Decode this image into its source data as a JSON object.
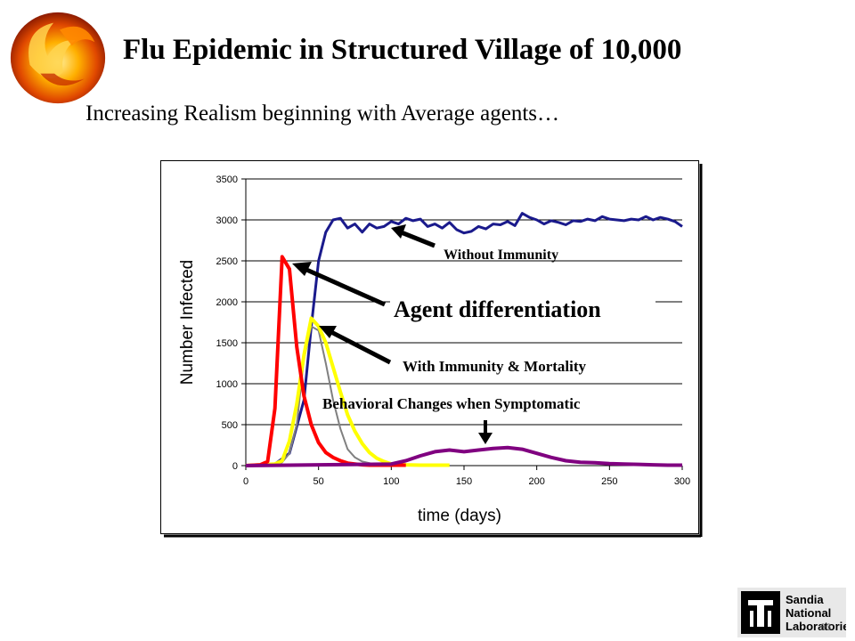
{
  "slide": {
    "title": "Flu Epidemic in Structured Village of 10,000",
    "subtitle": "Increasing Realism beginning with Average agents…",
    "page_number": "33",
    "logo_text": [
      "Sandia",
      "National",
      "Laboratories"
    ]
  },
  "chart_data": {
    "type": "line",
    "xlabel": "time (days)",
    "ylabel": "Number Infected",
    "xlim": [
      0,
      300
    ],
    "ylim": [
      0,
      3500
    ],
    "xticks": [
      0,
      50,
      100,
      150,
      200,
      250,
      300
    ],
    "yticks": [
      0,
      500,
      1000,
      1500,
      2000,
      2500,
      3000,
      3500
    ],
    "grid": "horizontal",
    "series": [
      {
        "color": "#1a1a8c",
        "x": [
          0,
          20,
          30,
          40,
          45,
          50,
          55,
          60,
          65,
          70,
          75,
          80,
          85,
          90,
          95,
          100,
          105,
          110,
          115,
          120,
          125,
          130,
          135,
          140,
          145,
          150,
          155,
          160,
          165,
          170,
          175,
          180,
          185,
          190,
          195,
          200,
          205,
          210,
          215,
          220,
          225,
          230,
          235,
          240,
          245,
          250,
          255,
          260,
          265,
          270,
          275,
          280,
          285,
          290,
          295,
          300
        ],
        "values": [
          0,
          20,
          150,
          800,
          1700,
          2500,
          2850,
          3000,
          3020,
          2900,
          2950,
          2850,
          2950,
          2900,
          2920,
          2980,
          2950,
          3020,
          2990,
          3010,
          2920,
          2950,
          2900,
          2970,
          2880,
          2840,
          2860,
          2920,
          2890,
          2950,
          2940,
          2980,
          2930,
          3080,
          3030,
          3000,
          2950,
          2990,
          2970,
          2940,
          2990,
          2980,
          3010,
          2990,
          3040,
          3010,
          3000,
          2990,
          3010,
          3000,
          3040,
          3000,
          3030,
          3010,
          2980,
          2920
        ]
      },
      {
        "color": "#808080",
        "x": [
          0,
          20,
          25,
          30,
          35,
          40,
          45,
          50,
          55,
          60,
          65,
          70,
          75,
          80,
          90,
          100,
          110
        ],
        "values": [
          0,
          10,
          40,
          150,
          500,
          1300,
          1700,
          1650,
          1250,
          800,
          450,
          200,
          100,
          50,
          10,
          0,
          0
        ]
      },
      {
        "color": "#ffff00",
        "x": [
          0,
          20,
          25,
          30,
          35,
          40,
          45,
          50,
          55,
          60,
          65,
          70,
          75,
          80,
          85,
          90,
          95,
          100,
          110,
          120,
          130,
          140
        ],
        "values": [
          0,
          20,
          60,
          300,
          750,
          1350,
          1800,
          1700,
          1500,
          1200,
          900,
          620,
          420,
          270,
          160,
          90,
          50,
          20,
          10,
          5,
          5,
          5
        ]
      },
      {
        "color": "#ff0000",
        "x": [
          0,
          10,
          15,
          20,
          25,
          30,
          35,
          40,
          45,
          50,
          55,
          60,
          65,
          70,
          75,
          80,
          85,
          90,
          100,
          110
        ],
        "values": [
          0,
          10,
          50,
          700,
          2550,
          2400,
          1450,
          850,
          500,
          280,
          160,
          100,
          60,
          30,
          20,
          10,
          5,
          5,
          5,
          5
        ]
      },
      {
        "color": "#800080",
        "x": [
          0,
          30,
          50,
          80,
          100,
          110,
          120,
          130,
          140,
          150,
          160,
          170,
          180,
          190,
          200,
          210,
          220,
          230,
          240,
          250,
          260,
          270,
          280,
          290,
          300
        ],
        "values": [
          0,
          5,
          10,
          15,
          20,
          60,
          120,
          170,
          190,
          170,
          190,
          210,
          220,
          200,
          150,
          100,
          60,
          40,
          35,
          25,
          20,
          15,
          10,
          5,
          5
        ]
      }
    ],
    "annotations": [
      {
        "text": "Without  Immunity",
        "x": 95,
        "y": 2950
      },
      {
        "text": "Agent differentiation",
        "x": 25,
        "y": 2540
      },
      {
        "text": "With Immunity & Mortality",
        "x": 49,
        "y": 1700
      },
      {
        "text": "Behavioral Changes when Symptomatic",
        "x": 165,
        "y": 230
      }
    ]
  }
}
